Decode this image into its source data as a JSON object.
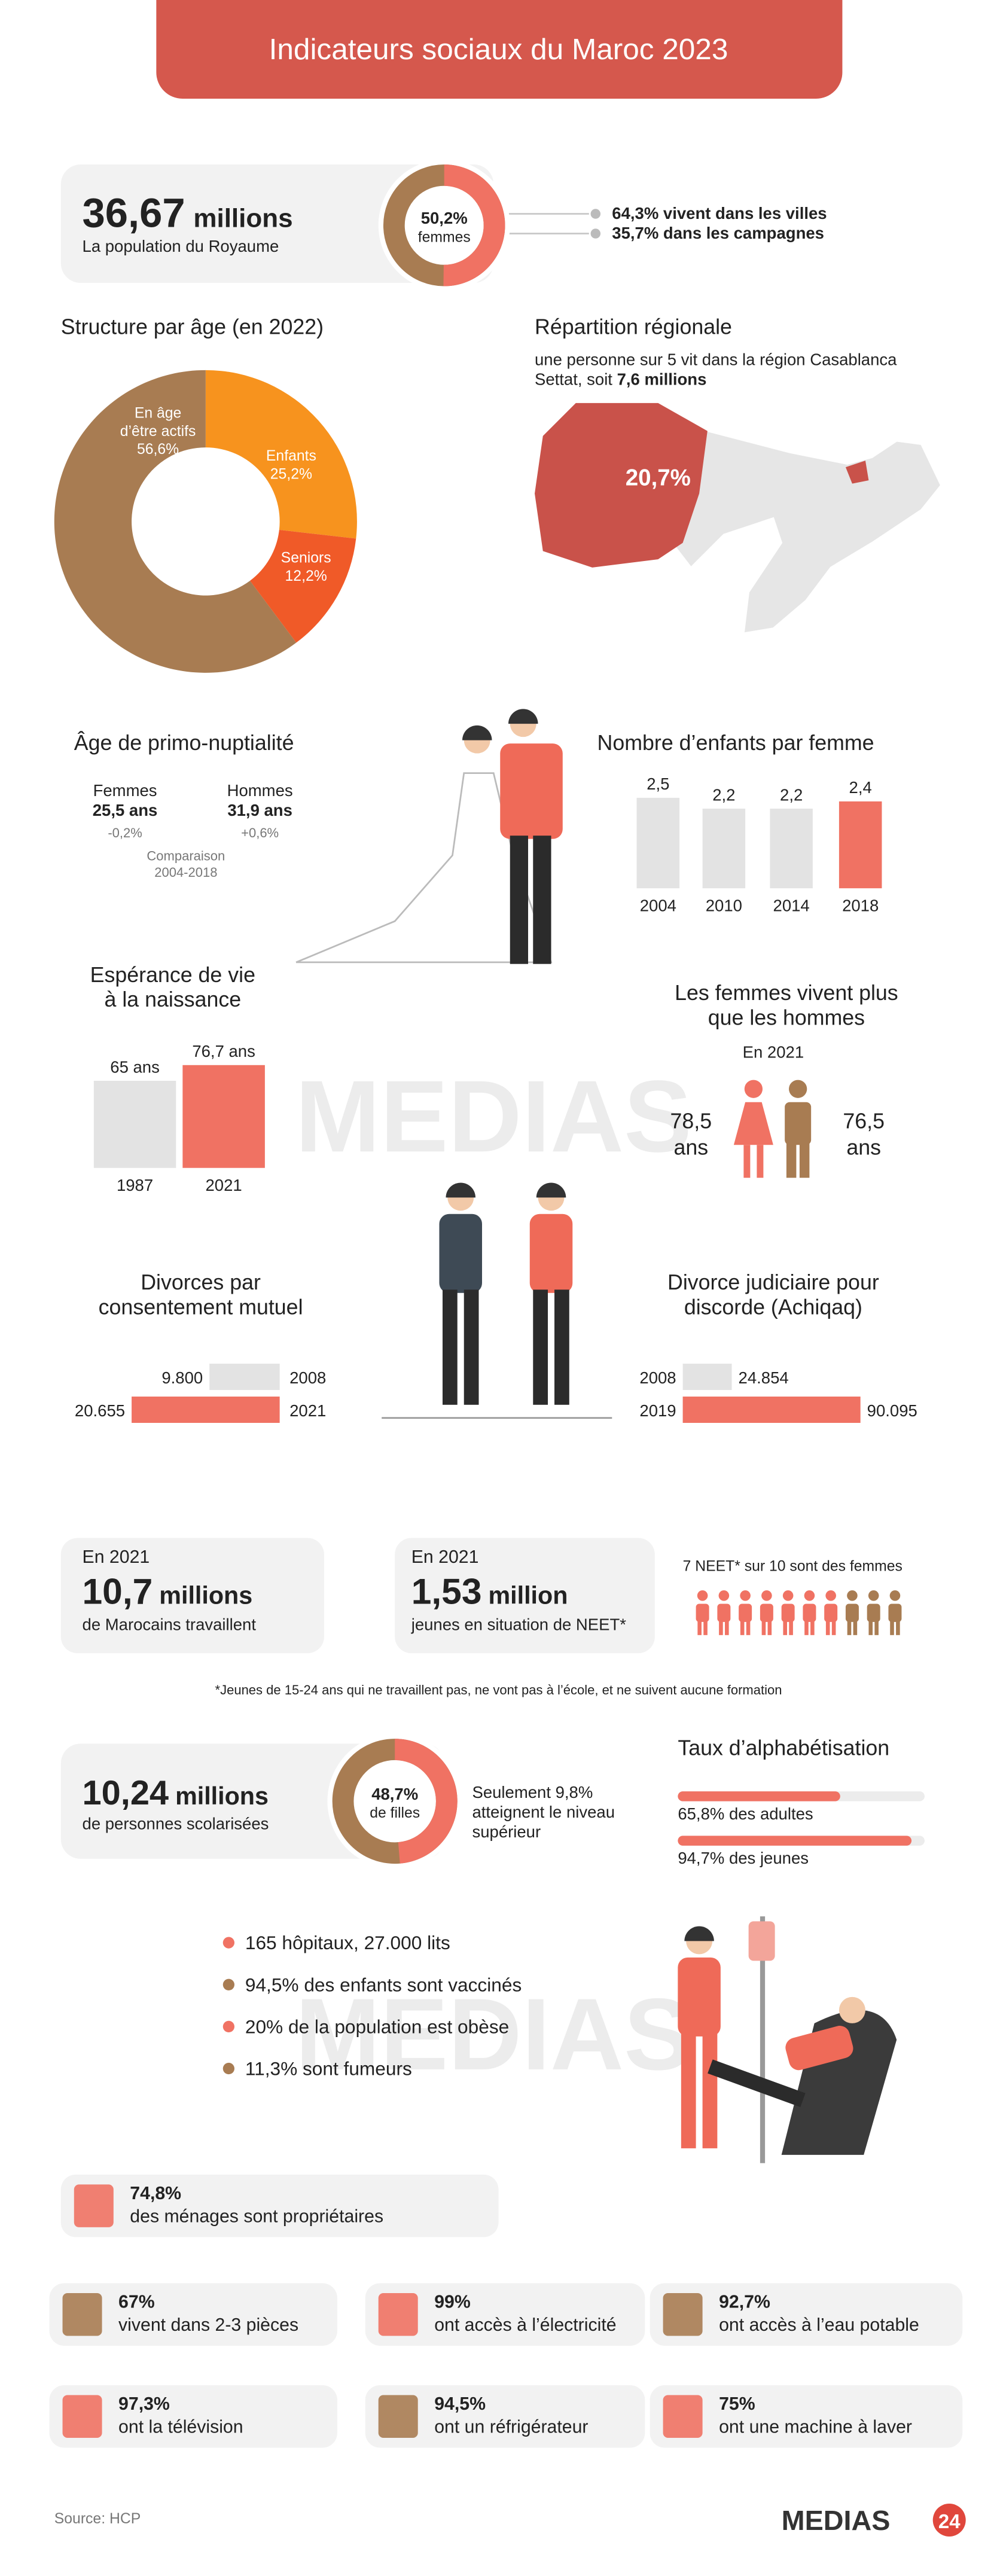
{
  "header": {
    "title": "Indicateurs sociaux du Maroc 2023"
  },
  "population": {
    "value": "36,67",
    "unit": "millions",
    "caption": "La population du Royaume",
    "women": {
      "type": "pie",
      "values": [
        50.2
      ],
      "value_labels": [
        "50,2%"
      ],
      "caption": "femmes",
      "colors": [
        "#f07263",
        "#a87c52"
      ]
    },
    "urban": "64,3% vivent dans les villes",
    "rural": "35,7% dans les campagnes"
  },
  "age_structure": {
    "type": "pie",
    "title": "Structure par âge (en 2022)",
    "categories": [
      [
        "Enfants"
      ],
      [
        "Seniors"
      ],
      [
        "En âge",
        "d’être actifs"
      ]
    ],
    "values": [
      25.2,
      12.2,
      56.6
    ],
    "value_labels": [
      "25,2%",
      "12,2%",
      "56,6%"
    ],
    "colors": [
      "#f7931e",
      "#f05a28",
      "#a87c52"
    ]
  },
  "region": {
    "title": "Répartition régionale",
    "lines": [
      "une personne sur 5 vit dans la région Casablanca",
      "Settat, soit "
    ],
    "bold": "7,6 millions",
    "share": "20,7%"
  },
  "marriage": {
    "title": "Âge de primo-nuptialité",
    "groups": [
      {
        "name": "Femmes",
        "age": "25,5 ans",
        "change": "-0,2%"
      },
      {
        "name": "Hommes",
        "age": "31,9 ans",
        "change": "+0,6%"
      }
    ],
    "note": [
      "Comparaison",
      "2004-2018"
    ]
  },
  "fertility": {
    "type": "bar",
    "title": "Nombre d’enfants par femme",
    "categories": [
      "2004",
      "2010",
      "2014",
      "2018"
    ],
    "values": [
      2.5,
      2.2,
      2.2,
      2.4
    ],
    "value_labels": [
      "2,5",
      "2,2",
      "2,2",
      "2,4"
    ],
    "colors": [
      "#e3e3e3",
      "#e3e3e3",
      "#e3e3e3",
      "#f07263"
    ]
  },
  "life_expectancy": {
    "type": "bar",
    "title": [
      "Espérance de vie",
      "à la naissance"
    ],
    "categories": [
      "1987",
      "2021"
    ],
    "values": [
      65,
      76.7
    ],
    "value_labels": [
      "65 ans",
      "76,7 ans"
    ],
    "colors": [
      "#e3e3e3",
      "#f07263"
    ]
  },
  "gender_gap": {
    "title": [
      "Les femmes vivent plus",
      "que les hommes"
    ],
    "year": "En 2021",
    "women": [
      "78,5",
      "ans"
    ],
    "men": [
      "76,5",
      "ans"
    ]
  },
  "divorce_mutual": {
    "type": "hbar",
    "title": [
      "Divorces par",
      "consentement mutuel"
    ],
    "categories": [
      "2008",
      "2021"
    ],
    "values": [
      9800,
      20655
    ],
    "value_labels": [
      "9.800",
      "20.655"
    ],
    "colors": [
      "#e3e3e3",
      "#f07263"
    ]
  },
  "divorce_judicial": {
    "type": "hbar",
    "title": [
      "Divorce judiciaire pour",
      "discorde (Achiqaq)"
    ],
    "categories": [
      "2008",
      "2019"
    ],
    "values": [
      24854,
      90095
    ],
    "value_labels": [
      "24.854",
      "90.095"
    ],
    "colors": [
      "#e3e3e3",
      "#f07263"
    ]
  },
  "employment": {
    "year": "En 2021",
    "value": "10,7",
    "unit": "millions",
    "caption": "de Marocains travaillent"
  },
  "neet": {
    "year": "En 2021",
    "value": "1,53",
    "unit": "million",
    "caption": "jeunes en situation de NEET*",
    "women_text": "7 NEET* sur 10 sont des femmes",
    "icons": {
      "women": 7,
      "total": 10
    },
    "footnote": "*Jeunes de 15-24 ans qui ne travaillent pas, ne vont pas à l’école, et ne suivent aucune formation"
  },
  "schooling": {
    "value": "10,24",
    "unit": "millions",
    "caption": "de personnes scolarisées",
    "girls": {
      "type": "pie",
      "values": [
        48.7
      ],
      "value_labels": [
        "48,7%"
      ],
      "caption": "de filles",
      "colors": [
        "#f07263",
        "#a87c52"
      ]
    },
    "higher": [
      "Seulement 9,8%",
      "atteignent le niveau",
      "supérieur"
    ]
  },
  "literacy": {
    "type": "bar",
    "title": "Taux d’alphabétisation",
    "values": [
      65.8,
      94.7
    ],
    "value_labels": [
      "65,8% des adultes",
      "94,7% des jeunes"
    ],
    "xlim": [
      0,
      100
    ],
    "color": "#f07263"
  },
  "health": [
    "165 hôpitaux, 27.000 lits",
    "94,5% des enfants sont vaccinés",
    "20% de la population est obèse",
    "11,3% sont fumeurs"
  ],
  "housing": [
    {
      "value": "74,8%",
      "text": "des ménages sont propriétaires"
    },
    {
      "value": "67%",
      "text": "vivent dans 2-3 pièces"
    },
    {
      "value": "99%",
      "text": "ont accès à l’électricité"
    },
    {
      "value": "92,7%",
      "text": "ont accès à l’eau potable"
    },
    {
      "value": "97,3%",
      "text": "ont la télévision"
    },
    {
      "value": "94,5%",
      "text": "ont un réfrigérateur"
    },
    {
      "value": "75%",
      "text": "ont une machine à laver"
    }
  ],
  "footer": {
    "source": "Source: HCP",
    "logo": "MEDIAS",
    "logo_num": "24"
  }
}
